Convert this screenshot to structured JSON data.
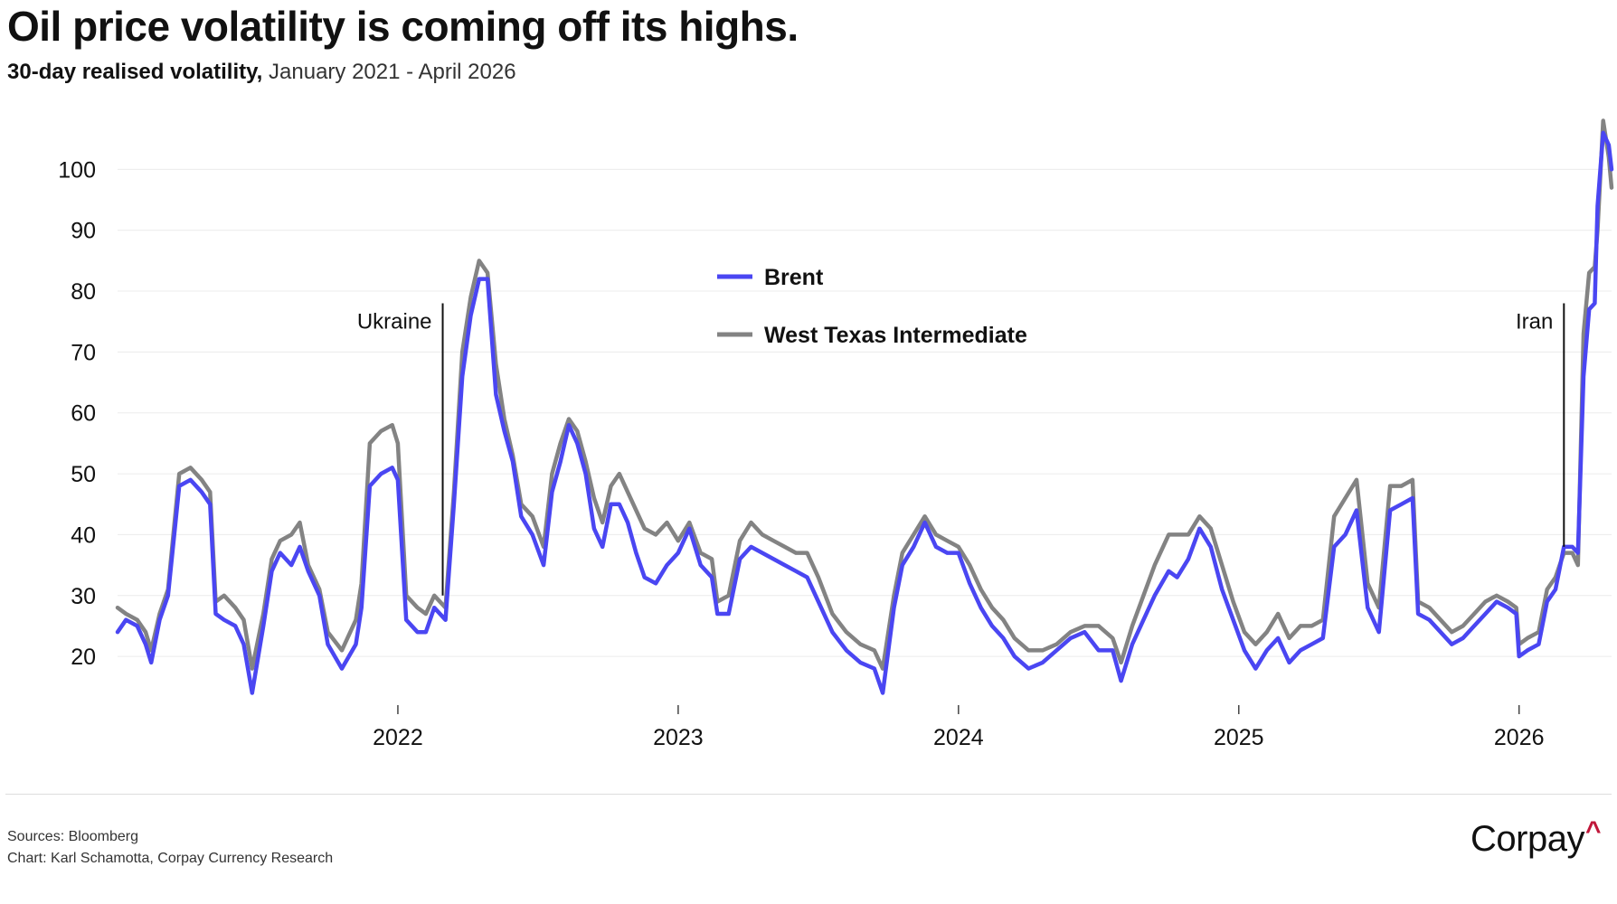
{
  "header": {
    "title": "Oil price volatility is coming off its highs.",
    "subtitle_strong": "30-day realised volatility,",
    "subtitle_light": " January 2021 - April 2026"
  },
  "footer": {
    "sources": "Sources: Bloomberg",
    "credit": "Chart: Karl Schamotta, Corpay Currency Research",
    "brand": "Corpay",
    "brand_mark": "^"
  },
  "colors": {
    "brent": "#4a46f2",
    "wti": "#838383",
    "grid": "#ececec",
    "text": "#111111",
    "annotation": "#111111"
  },
  "chart_data": {
    "type": "line",
    "title": "Oil price volatility is coming off its highs.",
    "subtitle": "30-day realised volatility, January 2021 - April 2026",
    "xlabel": "",
    "ylabel": "",
    "xlim": [
      2021.0,
      2026.33
    ],
    "ylim": [
      12,
      110
    ],
    "yticks": [
      20,
      30,
      40,
      50,
      60,
      70,
      80,
      90,
      100
    ],
    "xticks": [
      2022,
      2023,
      2024,
      2025,
      2026
    ],
    "xtick_labels": [
      "2022",
      "2023",
      "2024",
      "2025",
      "2026"
    ],
    "grid": "horizontal",
    "legend_position": "top-center",
    "series": [
      {
        "name": "Brent",
        "color": "#4a46f2",
        "points": [
          [
            2021.0,
            24
          ],
          [
            2021.03,
            26
          ],
          [
            2021.07,
            25
          ],
          [
            2021.1,
            22
          ],
          [
            2021.12,
            19
          ],
          [
            2021.15,
            26
          ],
          [
            2021.18,
            30
          ],
          [
            2021.22,
            48
          ],
          [
            2021.26,
            49
          ],
          [
            2021.3,
            47
          ],
          [
            2021.33,
            45
          ],
          [
            2021.35,
            27
          ],
          [
            2021.38,
            26
          ],
          [
            2021.42,
            25
          ],
          [
            2021.45,
            22
          ],
          [
            2021.48,
            14
          ],
          [
            2021.52,
            25
          ],
          [
            2021.55,
            34
          ],
          [
            2021.58,
            37
          ],
          [
            2021.62,
            35
          ],
          [
            2021.65,
            38
          ],
          [
            2021.68,
            34
          ],
          [
            2021.72,
            30
          ],
          [
            2021.75,
            22
          ],
          [
            2021.8,
            18
          ],
          [
            2021.85,
            22
          ],
          [
            2021.87,
            28
          ],
          [
            2021.9,
            48
          ],
          [
            2021.94,
            50
          ],
          [
            2021.98,
            51
          ],
          [
            2022.0,
            49
          ],
          [
            2022.03,
            26
          ],
          [
            2022.07,
            24
          ],
          [
            2022.1,
            24
          ],
          [
            2022.13,
            28
          ],
          [
            2022.17,
            26
          ],
          [
            2022.2,
            45
          ],
          [
            2022.23,
            66
          ],
          [
            2022.26,
            76
          ],
          [
            2022.29,
            82
          ],
          [
            2022.32,
            82
          ],
          [
            2022.35,
            63
          ],
          [
            2022.38,
            57
          ],
          [
            2022.41,
            52
          ],
          [
            2022.44,
            43
          ],
          [
            2022.48,
            40
          ],
          [
            2022.52,
            35
          ],
          [
            2022.55,
            47
          ],
          [
            2022.58,
            52
          ],
          [
            2022.61,
            58
          ],
          [
            2022.64,
            55
          ],
          [
            2022.67,
            50
          ],
          [
            2022.7,
            41
          ],
          [
            2022.73,
            38
          ],
          [
            2022.76,
            45
          ],
          [
            2022.79,
            45
          ],
          [
            2022.82,
            42
          ],
          [
            2022.85,
            37
          ],
          [
            2022.88,
            33
          ],
          [
            2022.92,
            32
          ],
          [
            2022.96,
            35
          ],
          [
            2023.0,
            37
          ],
          [
            2023.04,
            41
          ],
          [
            2023.08,
            35
          ],
          [
            2023.12,
            33
          ],
          [
            2023.14,
            27
          ],
          [
            2023.18,
            27
          ],
          [
            2023.22,
            36
          ],
          [
            2023.26,
            38
          ],
          [
            2023.3,
            37
          ],
          [
            2023.34,
            36
          ],
          [
            2023.38,
            35
          ],
          [
            2023.42,
            34
          ],
          [
            2023.46,
            33
          ],
          [
            2023.5,
            29
          ],
          [
            2023.55,
            24
          ],
          [
            2023.6,
            21
          ],
          [
            2023.65,
            19
          ],
          [
            2023.7,
            18
          ],
          [
            2023.73,
            14
          ],
          [
            2023.77,
            28
          ],
          [
            2023.8,
            35
          ],
          [
            2023.84,
            38
          ],
          [
            2023.88,
            42
          ],
          [
            2023.92,
            38
          ],
          [
            2023.96,
            37
          ],
          [
            2024.0,
            37
          ],
          [
            2024.04,
            32
          ],
          [
            2024.08,
            28
          ],
          [
            2024.12,
            25
          ],
          [
            2024.16,
            23
          ],
          [
            2024.2,
            20
          ],
          [
            2024.25,
            18
          ],
          [
            2024.3,
            19
          ],
          [
            2024.35,
            21
          ],
          [
            2024.4,
            23
          ],
          [
            2024.45,
            24
          ],
          [
            2024.5,
            21
          ],
          [
            2024.55,
            21
          ],
          [
            2024.58,
            16
          ],
          [
            2024.62,
            22
          ],
          [
            2024.66,
            26
          ],
          [
            2024.7,
            30
          ],
          [
            2024.75,
            34
          ],
          [
            2024.78,
            33
          ],
          [
            2024.82,
            36
          ],
          [
            2024.86,
            41
          ],
          [
            2024.9,
            38
          ],
          [
            2024.94,
            31
          ],
          [
            2024.98,
            26
          ],
          [
            2025.02,
            21
          ],
          [
            2025.06,
            18
          ],
          [
            2025.1,
            21
          ],
          [
            2025.14,
            23
          ],
          [
            2025.18,
            19
          ],
          [
            2025.22,
            21
          ],
          [
            2025.26,
            22
          ],
          [
            2025.3,
            23
          ],
          [
            2025.34,
            38
          ],
          [
            2025.38,
            40
          ],
          [
            2025.42,
            44
          ],
          [
            2025.46,
            28
          ],
          [
            2025.5,
            24
          ],
          [
            2025.54,
            44
          ],
          [
            2025.58,
            45
          ],
          [
            2025.62,
            46
          ],
          [
            2025.64,
            27
          ],
          [
            2025.68,
            26
          ],
          [
            2025.72,
            24
          ],
          [
            2025.76,
            22
          ],
          [
            2025.8,
            23
          ],
          [
            2025.84,
            25
          ],
          [
            2025.88,
            27
          ],
          [
            2025.92,
            29
          ],
          [
            2025.96,
            28
          ],
          [
            2025.99,
            27
          ],
          [
            2026.0,
            20
          ],
          [
            2026.03,
            21
          ],
          [
            2026.07,
            22
          ],
          [
            2026.1,
            29
          ],
          [
            2026.13,
            31
          ],
          [
            2026.16,
            38
          ],
          [
            2026.19,
            38
          ],
          [
            2026.21,
            37
          ],
          [
            2026.23,
            66
          ],
          [
            2026.25,
            77
          ],
          [
            2026.27,
            78
          ],
          [
            2026.28,
            94
          ],
          [
            2026.3,
            106
          ],
          [
            2026.32,
            104
          ],
          [
            2026.33,
            100
          ]
        ]
      },
      {
        "name": "West Texas Intermediate",
        "color": "#838383",
        "points": [
          [
            2021.0,
            28
          ],
          [
            2021.03,
            27
          ],
          [
            2021.07,
            26
          ],
          [
            2021.1,
            24
          ],
          [
            2021.12,
            21
          ],
          [
            2021.15,
            27
          ],
          [
            2021.18,
            31
          ],
          [
            2021.22,
            50
          ],
          [
            2021.26,
            51
          ],
          [
            2021.3,
            49
          ],
          [
            2021.33,
            47
          ],
          [
            2021.35,
            29
          ],
          [
            2021.38,
            30
          ],
          [
            2021.42,
            28
          ],
          [
            2021.45,
            26
          ],
          [
            2021.48,
            18
          ],
          [
            2021.52,
            27
          ],
          [
            2021.55,
            36
          ],
          [
            2021.58,
            39
          ],
          [
            2021.62,
            40
          ],
          [
            2021.65,
            42
          ],
          [
            2021.68,
            35
          ],
          [
            2021.72,
            31
          ],
          [
            2021.75,
            24
          ],
          [
            2021.8,
            21
          ],
          [
            2021.85,
            26
          ],
          [
            2021.87,
            32
          ],
          [
            2021.9,
            55
          ],
          [
            2021.94,
            57
          ],
          [
            2021.98,
            58
          ],
          [
            2022.0,
            55
          ],
          [
            2022.03,
            30
          ],
          [
            2022.07,
            28
          ],
          [
            2022.1,
            27
          ],
          [
            2022.13,
            30
          ],
          [
            2022.17,
            28
          ],
          [
            2022.2,
            47
          ],
          [
            2022.23,
            70
          ],
          [
            2022.26,
            79
          ],
          [
            2022.29,
            85
          ],
          [
            2022.32,
            83
          ],
          [
            2022.35,
            68
          ],
          [
            2022.38,
            59
          ],
          [
            2022.41,
            53
          ],
          [
            2022.44,
            45
          ],
          [
            2022.48,
            43
          ],
          [
            2022.52,
            38
          ],
          [
            2022.55,
            50
          ],
          [
            2022.58,
            55
          ],
          [
            2022.61,
            59
          ],
          [
            2022.64,
            57
          ],
          [
            2022.67,
            52
          ],
          [
            2022.7,
            46
          ],
          [
            2022.73,
            42
          ],
          [
            2022.76,
            48
          ],
          [
            2022.79,
            50
          ],
          [
            2022.82,
            47
          ],
          [
            2022.85,
            44
          ],
          [
            2022.88,
            41
          ],
          [
            2022.92,
            40
          ],
          [
            2022.96,
            42
          ],
          [
            2023.0,
            39
          ],
          [
            2023.04,
            42
          ],
          [
            2023.08,
            37
          ],
          [
            2023.12,
            36
          ],
          [
            2023.14,
            29
          ],
          [
            2023.18,
            30
          ],
          [
            2023.22,
            39
          ],
          [
            2023.26,
            42
          ],
          [
            2023.3,
            40
          ],
          [
            2023.34,
            39
          ],
          [
            2023.38,
            38
          ],
          [
            2023.42,
            37
          ],
          [
            2023.46,
            37
          ],
          [
            2023.5,
            33
          ],
          [
            2023.55,
            27
          ],
          [
            2023.6,
            24
          ],
          [
            2023.65,
            22
          ],
          [
            2023.7,
            21
          ],
          [
            2023.73,
            18
          ],
          [
            2023.77,
            30
          ],
          [
            2023.8,
            37
          ],
          [
            2023.84,
            40
          ],
          [
            2023.88,
            43
          ],
          [
            2023.92,
            40
          ],
          [
            2023.96,
            39
          ],
          [
            2024.0,
            38
          ],
          [
            2024.04,
            35
          ],
          [
            2024.08,
            31
          ],
          [
            2024.12,
            28
          ],
          [
            2024.16,
            26
          ],
          [
            2024.2,
            23
          ],
          [
            2024.25,
            21
          ],
          [
            2024.3,
            21
          ],
          [
            2024.35,
            22
          ],
          [
            2024.4,
            24
          ],
          [
            2024.45,
            25
          ],
          [
            2024.5,
            25
          ],
          [
            2024.55,
            23
          ],
          [
            2024.58,
            19
          ],
          [
            2024.62,
            25
          ],
          [
            2024.66,
            30
          ],
          [
            2024.7,
            35
          ],
          [
            2024.75,
            40
          ],
          [
            2024.78,
            40
          ],
          [
            2024.82,
            40
          ],
          [
            2024.86,
            43
          ],
          [
            2024.9,
            41
          ],
          [
            2024.94,
            35
          ],
          [
            2024.98,
            29
          ],
          [
            2025.02,
            24
          ],
          [
            2025.06,
            22
          ],
          [
            2025.1,
            24
          ],
          [
            2025.14,
            27
          ],
          [
            2025.18,
            23
          ],
          [
            2025.22,
            25
          ],
          [
            2025.26,
            25
          ],
          [
            2025.3,
            26
          ],
          [
            2025.34,
            43
          ],
          [
            2025.38,
            46
          ],
          [
            2025.42,
            49
          ],
          [
            2025.46,
            32
          ],
          [
            2025.5,
            28
          ],
          [
            2025.54,
            48
          ],
          [
            2025.58,
            48
          ],
          [
            2025.62,
            49
          ],
          [
            2025.64,
            29
          ],
          [
            2025.68,
            28
          ],
          [
            2025.72,
            26
          ],
          [
            2025.76,
            24
          ],
          [
            2025.8,
            25
          ],
          [
            2025.84,
            27
          ],
          [
            2025.88,
            29
          ],
          [
            2025.92,
            30
          ],
          [
            2025.96,
            29
          ],
          [
            2025.99,
            28
          ],
          [
            2026.0,
            22
          ],
          [
            2026.03,
            23
          ],
          [
            2026.07,
            24
          ],
          [
            2026.1,
            31
          ],
          [
            2026.13,
            33
          ],
          [
            2026.16,
            37
          ],
          [
            2026.19,
            37
          ],
          [
            2026.21,
            35
          ],
          [
            2026.23,
            73
          ],
          [
            2026.25,
            83
          ],
          [
            2026.27,
            84
          ],
          [
            2026.28,
            90
          ],
          [
            2026.3,
            108
          ],
          [
            2026.32,
            102
          ],
          [
            2026.33,
            97
          ]
        ]
      }
    ],
    "annotations": [
      {
        "label": "Ukraine",
        "x": 2022.16,
        "y_from": 30,
        "y_to": 78
      },
      {
        "label": "Iran",
        "x": 2026.16,
        "y_from": 38,
        "y_to": 78
      }
    ]
  }
}
